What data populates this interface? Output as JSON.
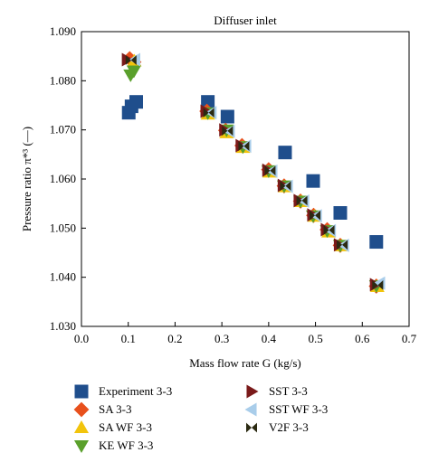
{
  "chart_data": {
    "type": "scatter",
    "title": "Diffuser inlet",
    "xlabel": "Mass flow rate G (kg/s)",
    "ylabel": "Pressure ratio π*³ (—)",
    "xlim": [
      0.0,
      0.7
    ],
    "ylim": [
      1.03,
      1.09
    ],
    "xticks": [
      "0.0",
      "0.1",
      "0.2",
      "0.3",
      "0.4",
      "0.5",
      "0.6",
      "0.7"
    ],
    "yticks": [
      "1.030",
      "1.040",
      "1.050",
      "1.060",
      "1.070",
      "1.080",
      "1.090"
    ],
    "grid": false,
    "legend_position": "bottom",
    "series": [
      {
        "name": "Experiment 3-3",
        "marker": "square",
        "color": "#1f4e8c",
        "x": [
          0.101,
          0.107,
          0.117,
          0.27,
          0.312,
          0.435,
          0.495,
          0.553,
          0.63
        ],
        "y": [
          1.0735,
          1.0748,
          1.0757,
          1.0757,
          1.0727,
          1.0654,
          1.0596,
          1.0531,
          1.0472
        ]
      },
      {
        "name": "SA 3-3",
        "marker": "diamond",
        "color": "#e8501c",
        "x": [
          0.103,
          0.112,
          0.268,
          0.308,
          0.343,
          0.4,
          0.433,
          0.468,
          0.496,
          0.525,
          0.553,
          0.63
        ],
        "y": [
          1.0845,
          1.0838,
          1.0738,
          1.0699,
          1.0668,
          1.0619,
          1.0586,
          1.0555,
          1.0526,
          1.0497,
          1.0465,
          1.0382
        ]
      },
      {
        "name": "SA WF 3-3",
        "marker": "triangle-up",
        "color": "#f2c40c",
        "x": [
          0.113,
          0.27,
          0.31,
          0.345,
          0.402,
          0.435,
          0.47,
          0.498,
          0.528,
          0.556,
          0.632
        ],
        "y": [
          1.084,
          1.0732,
          1.0694,
          1.0664,
          1.0614,
          1.0584,
          1.0554,
          1.0524,
          1.0492,
          1.0464,
          1.0381
        ]
      },
      {
        "name": "KE WF 3-3",
        "marker": "triangle-down",
        "color": "#5aa02c",
        "x": [
          0.105,
          0.112,
          0.27,
          0.31,
          0.345,
          0.4,
          0.433,
          0.468,
          0.495,
          0.525,
          0.553,
          0.63
        ],
        "y": [
          1.0812,
          1.082,
          1.0735,
          1.07,
          1.0666,
          1.0617,
          1.0586,
          1.0555,
          1.0525,
          1.0495,
          1.0465,
          1.0383
        ]
      },
      {
        "name": "SST 3-3",
        "marker": "triangle-right",
        "color": "#7a1a1a",
        "x": [
          0.097,
          0.265,
          0.305,
          0.34,
          0.397,
          0.43,
          0.464,
          0.493,
          0.522,
          0.55,
          0.627
        ],
        "y": [
          1.0843,
          1.0738,
          1.07,
          1.0668,
          1.0618,
          1.0587,
          1.0556,
          1.0527,
          1.0497,
          1.0466,
          1.0385
        ]
      },
      {
        "name": "SST WF 3-3",
        "marker": "triangle-left",
        "color": "#a9cdea",
        "x": [
          0.115,
          0.278,
          0.317,
          0.352,
          0.408,
          0.441,
          0.476,
          0.503,
          0.533,
          0.561,
          0.638
        ],
        "y": [
          1.0843,
          1.0735,
          1.0697,
          1.0667,
          1.0616,
          1.0585,
          1.0555,
          1.0525,
          1.0495,
          1.0465,
          1.0388
        ]
      },
      {
        "name": "V2F 3-3",
        "marker": "bowtie",
        "color": "#2b2a12",
        "x": [
          0.106,
          0.272,
          0.312,
          0.347,
          0.403,
          0.436,
          0.471,
          0.499,
          0.529,
          0.557,
          0.633
        ],
        "y": [
          1.0842,
          1.0735,
          1.0698,
          1.0667,
          1.0617,
          1.0586,
          1.0556,
          1.0526,
          1.0496,
          1.0466,
          1.0384
        ]
      }
    ]
  }
}
